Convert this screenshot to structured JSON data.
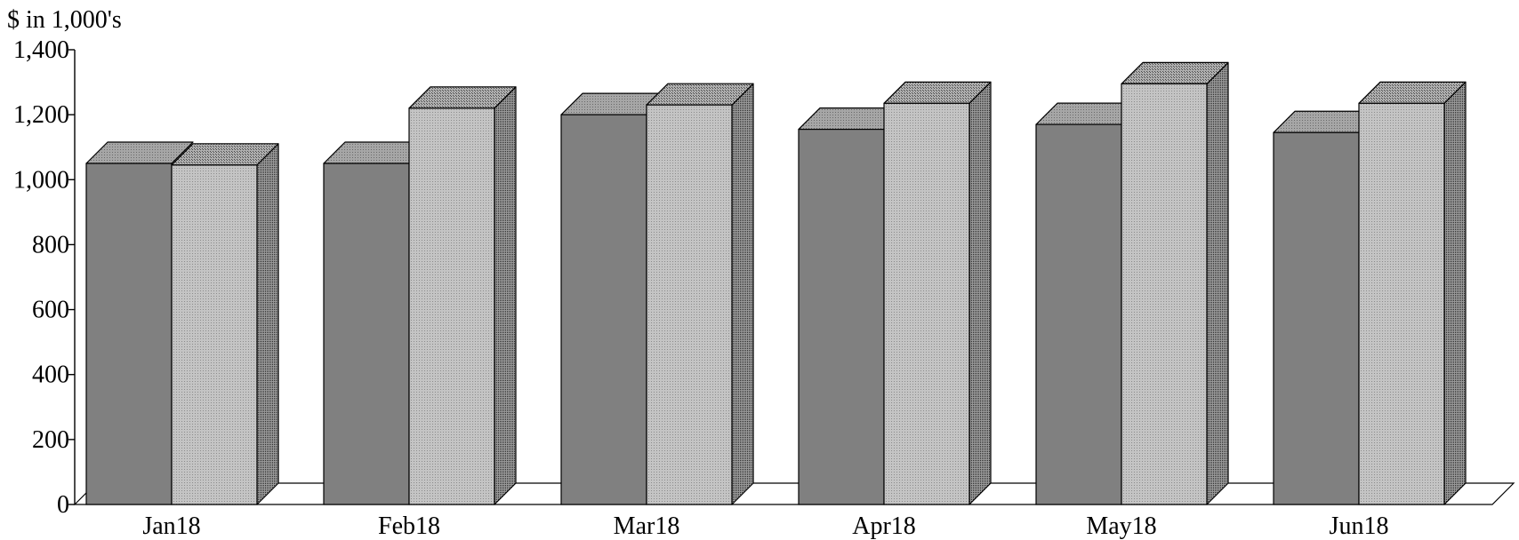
{
  "chart_data": {
    "type": "bar",
    "title": "",
    "ylabel": "$ in 1,000's",
    "xlabel": "",
    "categories": [
      "Jan18",
      "Feb18",
      "Mar18",
      "Apr18",
      "May18",
      "Jun18"
    ],
    "series": [
      {
        "values": [
          1050,
          1050,
          1200,
          1155,
          1170,
          1145
        ]
      },
      {
        "values": [
          1045,
          1220,
          1230,
          1235,
          1295,
          1235
        ]
      }
    ],
    "ylim": [
      0,
      1400
    ],
    "yticks": [
      0,
      200,
      400,
      600,
      800,
      1000,
      1200,
      1400
    ],
    "ytick_labels": [
      "0",
      "200",
      "400",
      "600",
      "800",
      "1,000",
      "1,200",
      "1,400"
    ],
    "grid": false,
    "legend": "none",
    "style": "3d-clustered-column",
    "colors": {
      "series_0_front": "#808080",
      "series_0_top": "#9a9a9a",
      "series_1_front": "#b8b8b8",
      "series_1_top": "#9c9c9c",
      "series_1_side": "#6e6e6e",
      "axis": "#000000"
    }
  }
}
